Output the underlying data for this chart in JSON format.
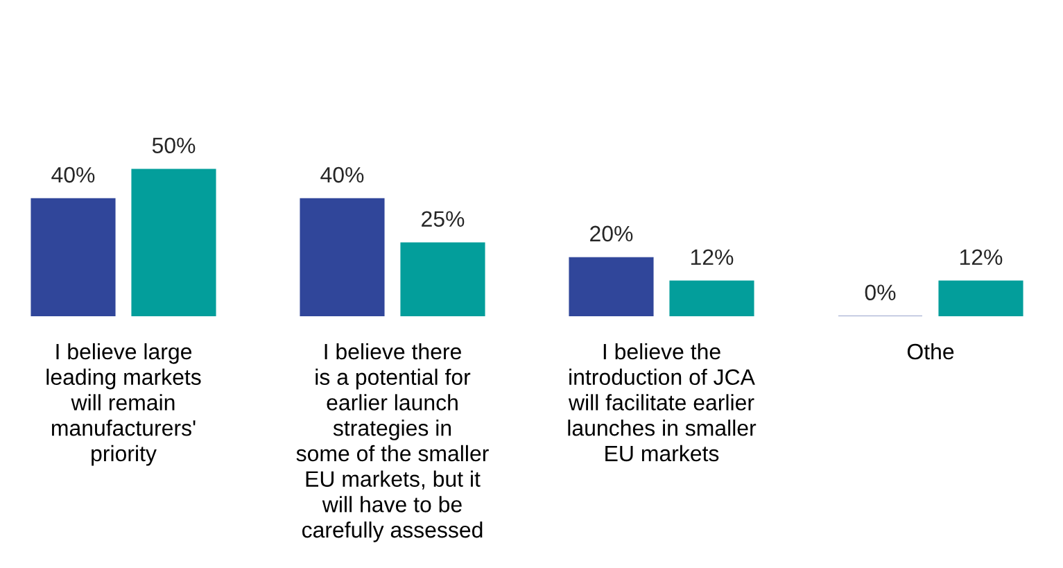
{
  "chart_data": {
    "type": "bar",
    "categories": [
      "I believe large\nleading markets\nwill remain\nmanufacturers'\npriority",
      "I believe there\nis a potential for\nearlier launch\nstrategies in\nsome of the smaller\nEU markets, but it\nwill have to be\ncarefully assessed",
      "I believe the\nintroduction of JCA\nwill facilitate earlier\nlaunches in smaller\nEU markets",
      "Othe"
    ],
    "series": [
      {
        "color": "#30469a",
        "values": [
          40,
          40,
          20,
          0
        ],
        "value_labels": [
          "40%",
          "40%",
          "20%",
          "0%"
        ]
      },
      {
        "color": "#039e9b",
        "values": [
          50,
          25,
          12,
          12
        ],
        "value_labels": [
          "50%",
          "25%",
          "12%",
          "12%"
        ]
      }
    ],
    "grid": false,
    "legend": false
  }
}
